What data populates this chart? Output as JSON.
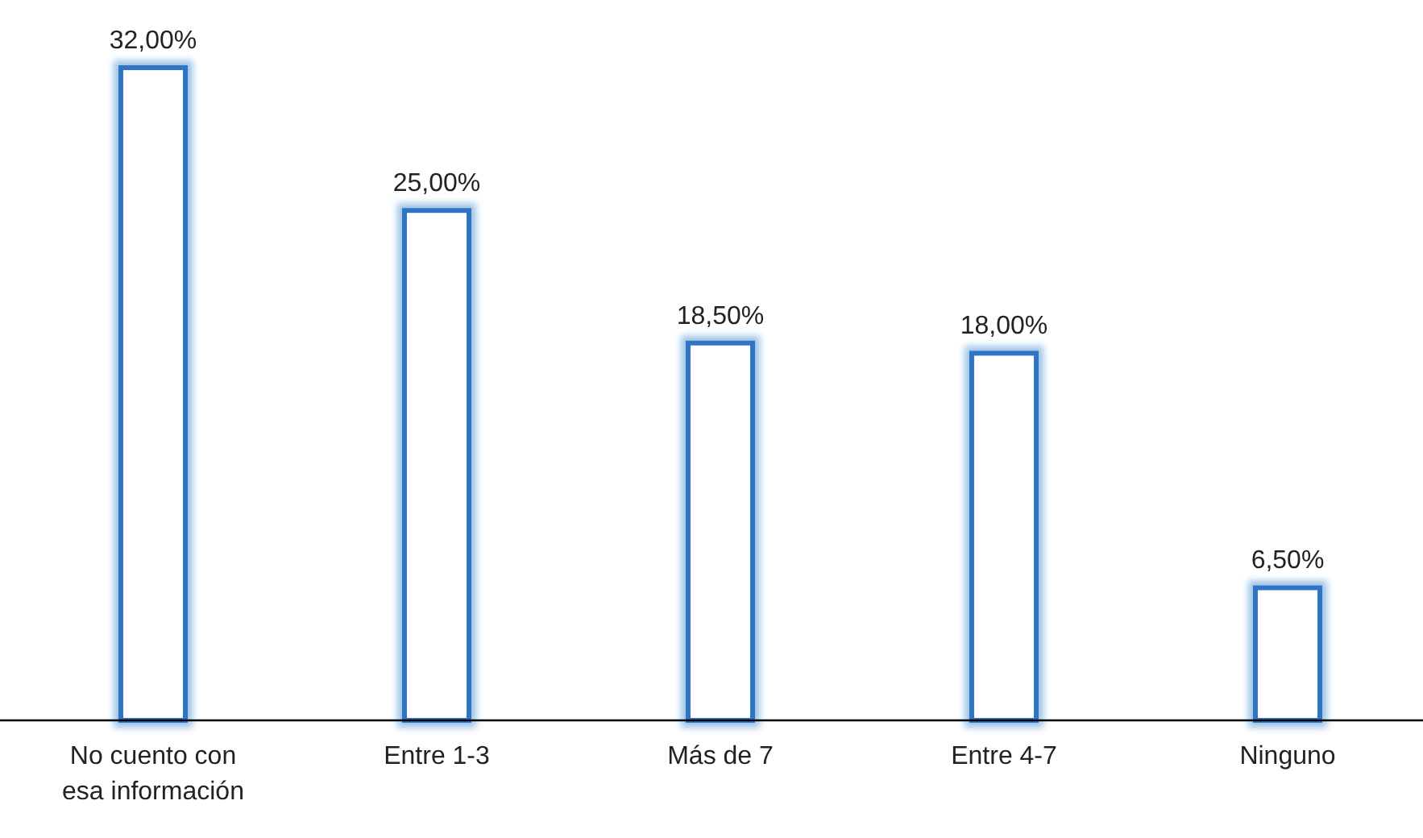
{
  "chart_data": {
    "type": "bar",
    "categories": [
      "No cuento con esa información",
      "Entre 1-3",
      "Más de 7",
      "Entre 4-7",
      "Ninguno"
    ],
    "values": [
      32,
      25,
      18.5,
      18,
      6.5
    ],
    "value_labels": [
      "32,00%",
      "25,00%",
      "18,50%",
      "18,00%",
      "6,50%"
    ],
    "color": "#2e75c8"
  }
}
